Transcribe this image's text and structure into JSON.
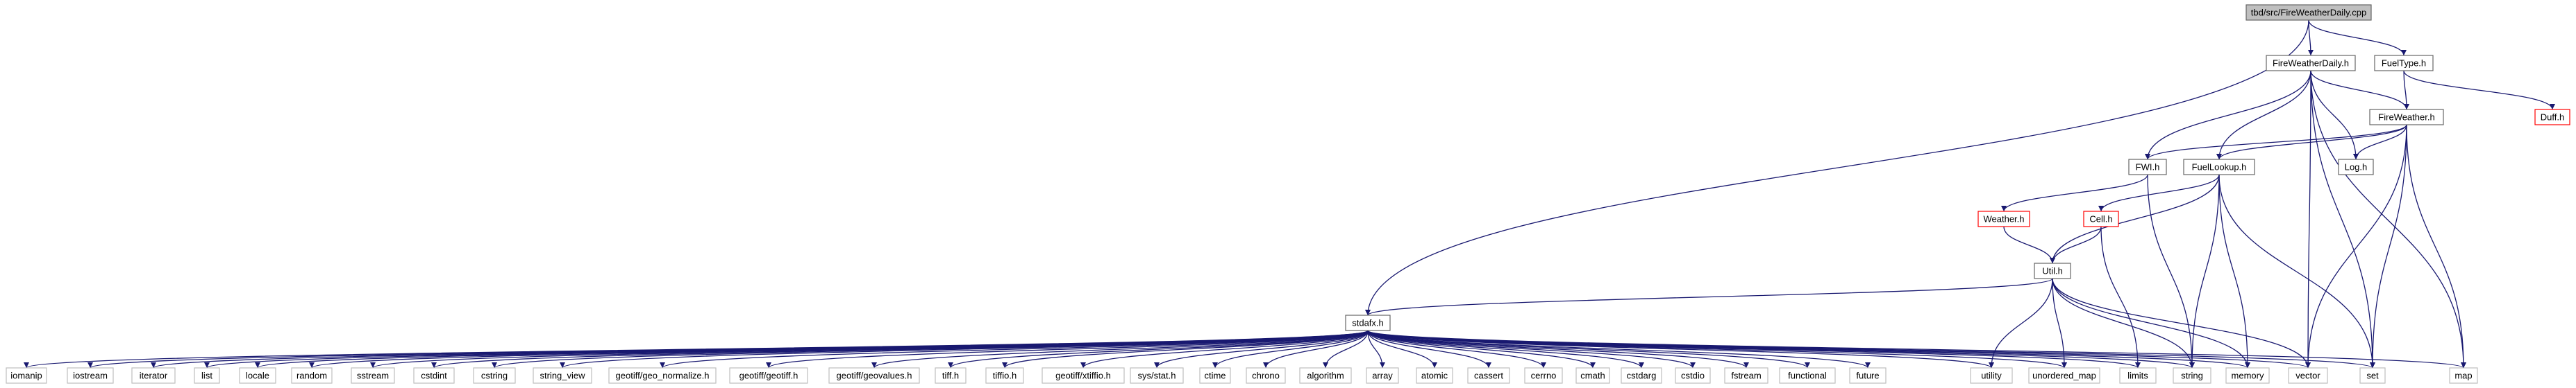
{
  "colors": {
    "edge": "#191970",
    "node_border": "#666666",
    "node_border_missing": "#ff0000",
    "root_fill": "#bfbfbf",
    "node_fill": "#ffffff",
    "leaf_border": "#bfbfbf"
  },
  "nodes": {
    "root": "tbd/src/FireWeatherDaily.cpp",
    "fireweatherdaily_h": "FireWeatherDaily.h",
    "fueltype_h": "FuelType.h",
    "fireweather_h": "FireWeather.h",
    "duff_h": "Duff.h",
    "fwi_h": "FWI.h",
    "fuellookup_h": "FuelLookup.h",
    "log_h": "Log.h",
    "weather_h": "Weather.h",
    "cell_h": "Cell.h",
    "util_h": "Util.h",
    "stdafx_h": "stdafx.h",
    "iomanip": "iomanip",
    "iostream": "iostream",
    "iterator": "iterator",
    "list": "list",
    "locale": "locale",
    "random": "random",
    "sstream": "sstream",
    "cstdint": "cstdint",
    "cstring": "cstring",
    "string_view": "string_view",
    "geo_normalize": "geotiff/geo_normalize.h",
    "geotiff_h": "geotiff/geotiff.h",
    "geovalues": "geotiff/geovalues.h",
    "tiff_h": "tiff.h",
    "tiffio_h": "tiffio.h",
    "xtiffio": "geotiff/xtiffio.h",
    "sys_stat": "sys/stat.h",
    "ctime": "ctime",
    "chrono": "chrono",
    "algorithm": "algorithm",
    "array": "array",
    "atomic": "atomic",
    "cassert": "cassert",
    "cerrno": "cerrno",
    "cmath": "cmath",
    "cstdarg": "cstdarg",
    "cstdio": "cstdio",
    "fstream": "fstream",
    "functional": "functional",
    "future": "future",
    "utility": "utility",
    "unordered_map": "unordered_map",
    "limits": "limits",
    "string": "string",
    "memory": "memory",
    "vector": "vector",
    "set": "set",
    "map": "map"
  },
  "edges": [
    [
      "root",
      "fireweatherdaily_h"
    ],
    [
      "root",
      "fueltype_h"
    ],
    [
      "root",
      "stdafx_h"
    ],
    [
      "fireweatherdaily_h",
      "fireweather_h"
    ],
    [
      "fireweatherdaily_h",
      "fwi_h"
    ],
    [
      "fireweatherdaily_h",
      "fuellookup_h"
    ],
    [
      "fireweatherdaily_h",
      "log_h"
    ],
    [
      "fireweatherdaily_h",
      "vector"
    ],
    [
      "fireweatherdaily_h",
      "set"
    ],
    [
      "fireweatherdaily_h",
      "map"
    ],
    [
      "fueltype_h",
      "fireweather_h"
    ],
    [
      "fueltype_h",
      "duff_h"
    ],
    [
      "fireweather_h",
      "fwi_h"
    ],
    [
      "fireweather_h",
      "fuellookup_h"
    ],
    [
      "fireweather_h",
      "log_h"
    ],
    [
      "fireweather_h",
      "vector"
    ],
    [
      "fireweather_h",
      "set"
    ],
    [
      "fireweather_h",
      "map"
    ],
    [
      "fwi_h",
      "weather_h"
    ],
    [
      "fwi_h",
      "string"
    ],
    [
      "fuellookup_h",
      "cell_h"
    ],
    [
      "fuellookup_h",
      "util_h"
    ],
    [
      "fuellookup_h",
      "string"
    ],
    [
      "fuellookup_h",
      "memory"
    ],
    [
      "fuellookup_h",
      "set"
    ],
    [
      "weather_h",
      "util_h"
    ],
    [
      "cell_h",
      "util_h"
    ],
    [
      "cell_h",
      "limits"
    ],
    [
      "util_h",
      "stdafx_h"
    ],
    [
      "util_h",
      "utility"
    ],
    [
      "util_h",
      "unordered_map"
    ],
    [
      "util_h",
      "string"
    ],
    [
      "util_h",
      "vector"
    ],
    [
      "util_h",
      "memory"
    ],
    [
      "stdafx_h",
      "iomanip"
    ],
    [
      "stdafx_h",
      "iostream"
    ],
    [
      "stdafx_h",
      "iterator"
    ],
    [
      "stdafx_h",
      "list"
    ],
    [
      "stdafx_h",
      "locale"
    ],
    [
      "stdafx_h",
      "random"
    ],
    [
      "stdafx_h",
      "sstream"
    ],
    [
      "stdafx_h",
      "cstdint"
    ],
    [
      "stdafx_h",
      "cstring"
    ],
    [
      "stdafx_h",
      "string_view"
    ],
    [
      "stdafx_h",
      "geo_normalize"
    ],
    [
      "stdafx_h",
      "geotiff_h"
    ],
    [
      "stdafx_h",
      "geovalues"
    ],
    [
      "stdafx_h",
      "tiff_h"
    ],
    [
      "stdafx_h",
      "tiffio_h"
    ],
    [
      "stdafx_h",
      "xtiffio"
    ],
    [
      "stdafx_h",
      "sys_stat"
    ],
    [
      "stdafx_h",
      "ctime"
    ],
    [
      "stdafx_h",
      "chrono"
    ],
    [
      "stdafx_h",
      "algorithm"
    ],
    [
      "stdafx_h",
      "array"
    ],
    [
      "stdafx_h",
      "atomic"
    ],
    [
      "stdafx_h",
      "cassert"
    ],
    [
      "stdafx_h",
      "cerrno"
    ],
    [
      "stdafx_h",
      "cmath"
    ],
    [
      "stdafx_h",
      "cstdarg"
    ],
    [
      "stdafx_h",
      "cstdio"
    ],
    [
      "stdafx_h",
      "fstream"
    ],
    [
      "stdafx_h",
      "functional"
    ],
    [
      "stdafx_h",
      "future"
    ],
    [
      "stdafx_h",
      "utility"
    ],
    [
      "stdafx_h",
      "unordered_map"
    ],
    [
      "stdafx_h",
      "limits"
    ],
    [
      "stdafx_h",
      "string"
    ],
    [
      "stdafx_h",
      "memory"
    ],
    [
      "stdafx_h",
      "vector"
    ],
    [
      "stdafx_h",
      "set"
    ],
    [
      "stdafx_h",
      "map"
    ]
  ]
}
